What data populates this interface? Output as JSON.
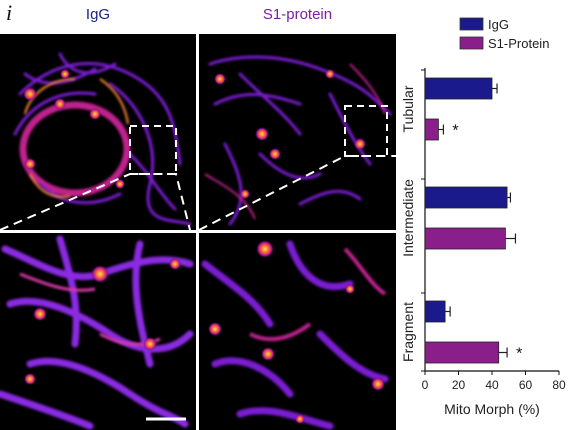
{
  "figure": {
    "panel_letter": "i",
    "column_labels": [
      "IgG",
      "S1-protein"
    ],
    "colors": {
      "igg_label": "#1a237e",
      "s1_label": "#7b1fa2",
      "igg_bar": "#1a1a8c",
      "s1_bar": "#8a1e8a",
      "image_background": "#000000",
      "inset_box": "#ffffff"
    }
  },
  "chart_data": {
    "type": "bar",
    "orientation": "horizontal",
    "categories": [
      "Tubular",
      "Intermediate",
      "Fragment"
    ],
    "series": [
      {
        "name": "IgG",
        "values": [
          40,
          49,
          12
        ],
        "errors": [
          3,
          2,
          3
        ],
        "color": "#1a1a8c"
      },
      {
        "name": "S1-Protein",
        "values": [
          8,
          48,
          44
        ],
        "errors": [
          3,
          6,
          5
        ],
        "color": "#8a1e8a"
      }
    ],
    "significance": [
      {
        "category": "Tubular",
        "series": "S1-Protein",
        "mark": "*"
      },
      {
        "category": "Fragment",
        "series": "S1-Protein",
        "mark": "*"
      }
    ],
    "xlabel": "Mito Morph (%)",
    "ylabel": "",
    "xlim": [
      0,
      80
    ],
    "xticks": [
      0,
      20,
      40,
      60,
      80
    ],
    "legend_placement": "top",
    "grid": false
  }
}
